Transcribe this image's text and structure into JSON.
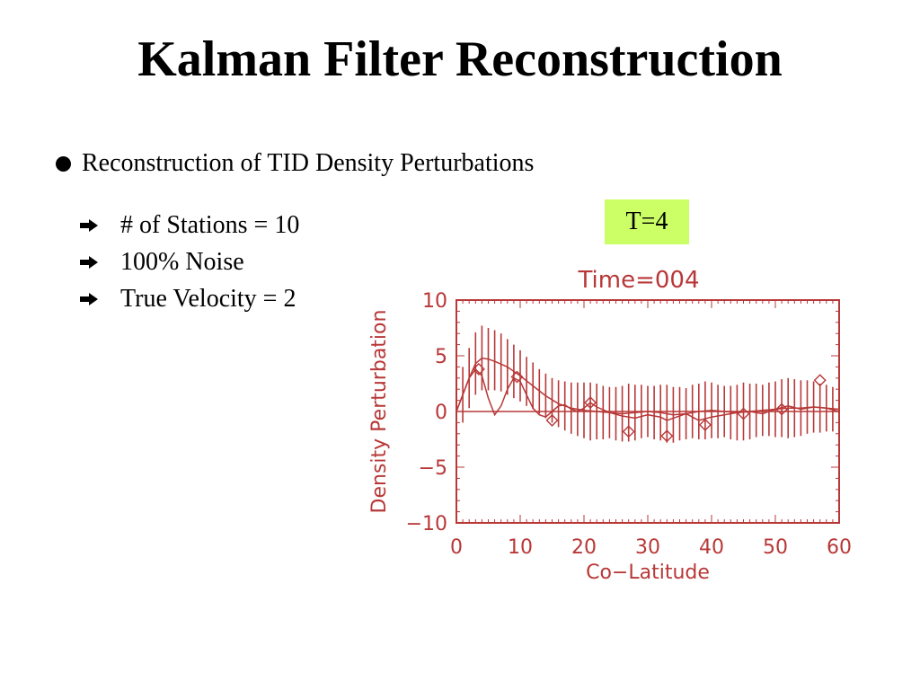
{
  "slide": {
    "title": "Kalman Filter Reconstruction",
    "bullet": "Reconstruction of TID Density Perturbations",
    "sub_bullets": [
      "# of Stations = 10",
      "100% Noise",
      "True Velocity = 2"
    ],
    "badge": "T=4",
    "badge_color": "#ccff66"
  },
  "chart_data": {
    "type": "line",
    "title": "Time=004",
    "xlabel": "Co−Latitude",
    "ylabel": "Density Perturbation",
    "xlim": [
      0,
      60
    ],
    "ylim": [
      -10,
      10
    ],
    "xticks": [
      0,
      10,
      20,
      30,
      40,
      50,
      60
    ],
    "yticks": [
      10,
      5,
      0,
      -5,
      -10
    ],
    "ytick_labels": [
      "10",
      "5",
      "0",
      "−5",
      "−10"
    ],
    "grid": false,
    "color": "#b83838",
    "series": [
      {
        "style": "smooth-line",
        "x": [
          0,
          1,
          2,
          3,
          4,
          5,
          6,
          8,
          10,
          12,
          14,
          16,
          18,
          20,
          22,
          24,
          26,
          28,
          30,
          32,
          34,
          36,
          38,
          40,
          42,
          44,
          46,
          48,
          50,
          52,
          54,
          56,
          58,
          60
        ],
        "y": [
          0,
          1.5,
          3,
          4.3,
          4.8,
          4.7,
          4.5,
          4,
          3.2,
          2.3,
          1.4,
          0.7,
          0.3,
          0.1,
          0,
          -0.1,
          -0.2,
          -0.1,
          0,
          -0.1,
          -0.3,
          -0.2,
          0,
          0.1,
          0,
          -0.1,
          0,
          0.1,
          0.2,
          0.3,
          0.3,
          0.4,
          0.3,
          0.2
        ]
      },
      {
        "style": "jagged-line",
        "x": [
          0,
          1,
          2,
          3,
          4,
          5,
          6,
          7,
          8,
          9,
          10,
          11,
          12,
          13,
          14,
          15,
          16,
          17,
          18,
          19,
          20,
          21,
          22,
          24,
          26,
          28,
          30,
          32,
          33,
          34,
          36,
          38,
          40,
          42,
          44,
          46,
          48,
          50,
          52,
          54,
          56,
          58,
          60
        ],
        "y": [
          0,
          1.5,
          3,
          3.8,
          3.2,
          1.2,
          -0.3,
          0.5,
          2,
          3,
          2.7,
          1.5,
          0.3,
          -0.3,
          -0.5,
          0,
          0.5,
          0.6,
          0.2,
          0,
          0.3,
          0.8,
          0.4,
          -0.1,
          -0.4,
          -0.6,
          -0.3,
          -0.5,
          -0.8,
          -0.6,
          -0.2,
          -0.8,
          -0.5,
          -0.3,
          -0.1,
          0,
          -0.2,
          0.2,
          0.5,
          0.2,
          0.4,
          0.3,
          0
        ]
      },
      {
        "style": "error-bars",
        "x": [
          1,
          2,
          3,
          4,
          5,
          6,
          7,
          8,
          9,
          10,
          11,
          12,
          13,
          14,
          15,
          16,
          17,
          18,
          19,
          20,
          21,
          22,
          23,
          24,
          25,
          26,
          27,
          28,
          29,
          30,
          31,
          32,
          33,
          34,
          35,
          36,
          37,
          38,
          39,
          40,
          41,
          42,
          43,
          44,
          45,
          46,
          47,
          48,
          49,
          50,
          51,
          52,
          53,
          54,
          55,
          56,
          57,
          58,
          59
        ],
        "y": [
          1.5,
          3,
          4.3,
          4.8,
          4.7,
          4.6,
          4.4,
          4,
          3.6,
          3.2,
          2.7,
          2.3,
          1.8,
          1.4,
          1,
          0.7,
          0.5,
          0.3,
          0.2,
          0.1,
          0,
          0,
          -0.1,
          -0.1,
          -0.2,
          -0.2,
          -0.1,
          -0.1,
          0,
          0,
          -0.1,
          -0.1,
          -0.2,
          -0.3,
          -0.2,
          -0.2,
          0,
          0,
          0.1,
          0.1,
          0,
          0,
          -0.1,
          -0.1,
          0,
          0,
          0.1,
          0.1,
          0.2,
          0.2,
          0.3,
          0.3,
          0.3,
          0.3,
          0.4,
          0.4,
          0.3,
          0.3,
          0.2
        ],
        "err": [
          2.5,
          2.7,
          2.8,
          2.9,
          2.8,
          2.7,
          2.6,
          2.5,
          2.4,
          2.3,
          2.2,
          2.1,
          2,
          2,
          2,
          2.1,
          2.2,
          2.3,
          2.4,
          2.5,
          2.6,
          2.5,
          2.4,
          2.3,
          2.4,
          2.5,
          2.6,
          2.5,
          2.4,
          2.3,
          2.4,
          2.5,
          2.6,
          2.5,
          2.4,
          2.3,
          2.4,
          2.5,
          2.6,
          2.5,
          2.4,
          2.3,
          2.4,
          2.5,
          2.6,
          2.5,
          2.4,
          2.3,
          2.4,
          2.5,
          2.6,
          2.7,
          2.6,
          2.5,
          2.4,
          2.3,
          2.2,
          2.1,
          2
        ]
      },
      {
        "style": "diamond-markers",
        "x": [
          3.5,
          9.5,
          15,
          21,
          27,
          33,
          39,
          45,
          51,
          57
        ],
        "y": [
          3.8,
          3.1,
          -0.8,
          0.8,
          -1.8,
          -2.2,
          -1.2,
          -0.2,
          0.2,
          2.8
        ]
      }
    ]
  }
}
